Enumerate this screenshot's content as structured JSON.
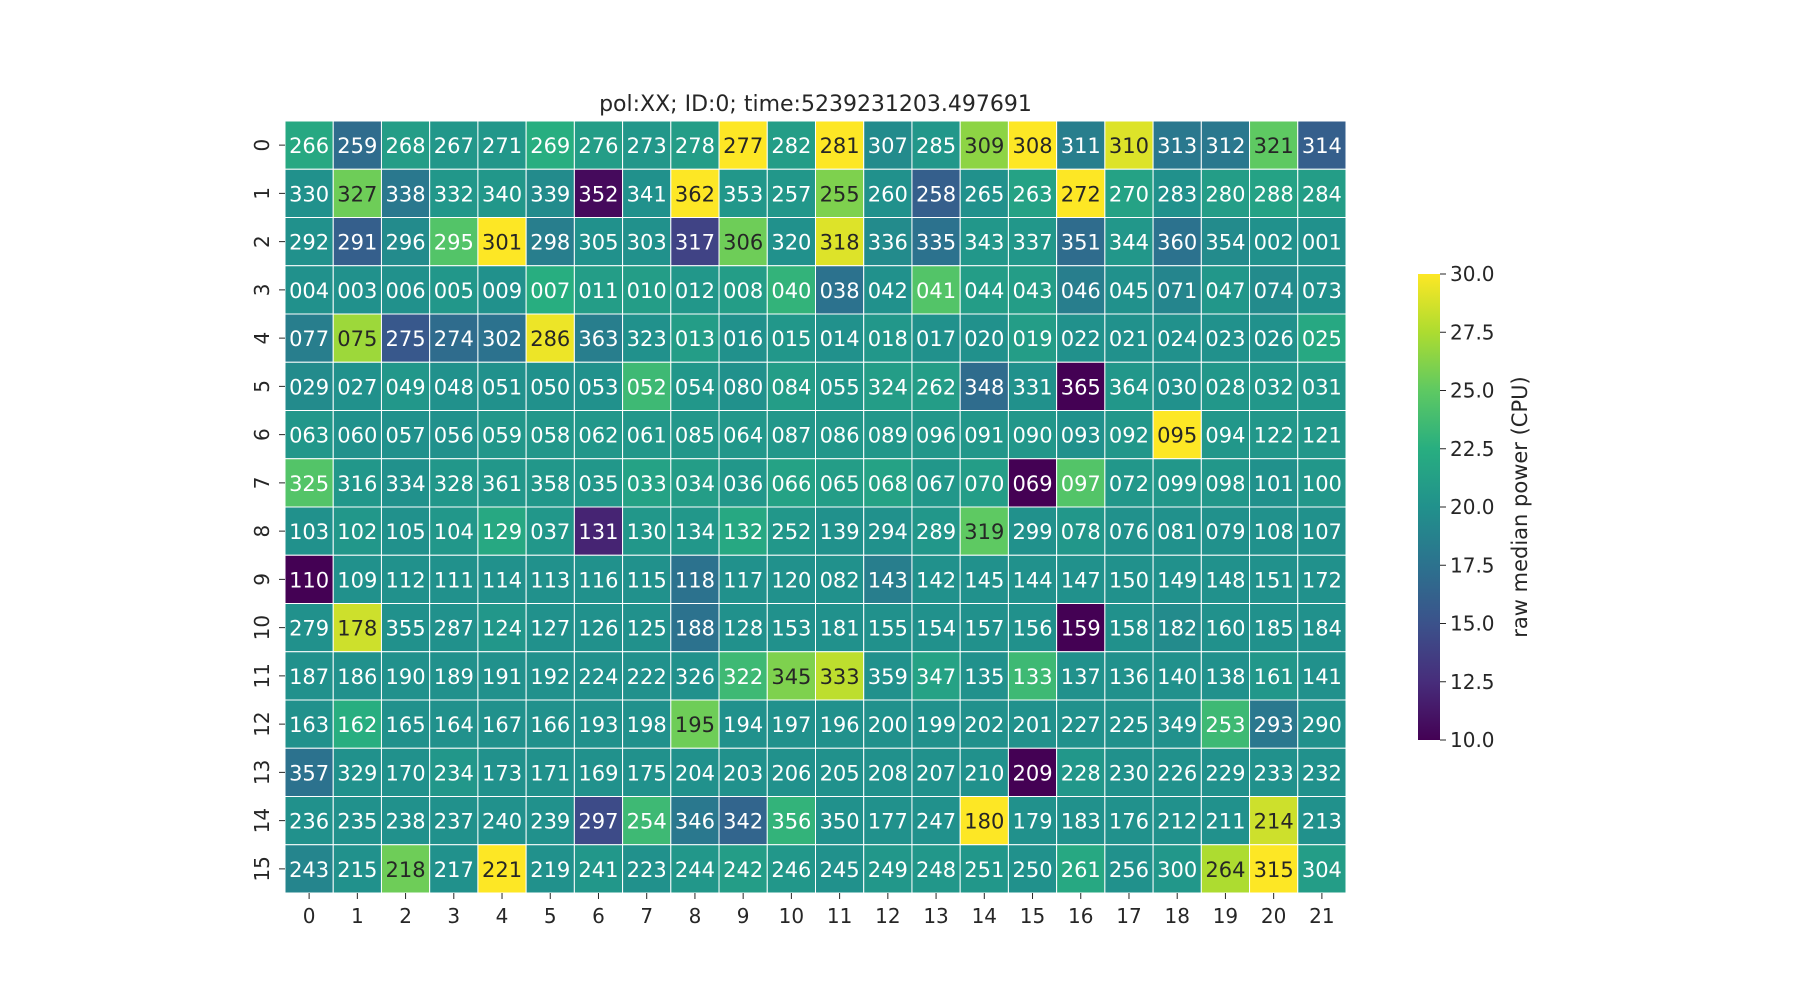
{
  "chart_data": {
    "type": "heatmap",
    "title": "pol:XX; ID:0; time:5239231203.497691",
    "x_tick_labels": [
      "0",
      "1",
      "2",
      "3",
      "4",
      "5",
      "6",
      "7",
      "8",
      "9",
      "10",
      "11",
      "12",
      "13",
      "14",
      "15",
      "16",
      "17",
      "18",
      "19",
      "20",
      "21"
    ],
    "y_tick_labels": [
      "0",
      "1",
      "2",
      "3",
      "4",
      "5",
      "6",
      "7",
      "8",
      "9",
      "10",
      "11",
      "12",
      "13",
      "14",
      "15"
    ],
    "annotations": [
      [
        "266",
        "259",
        "268",
        "267",
        "271",
        "269",
        "276",
        "273",
        "278",
        "277",
        "282",
        "281",
        "307",
        "285",
        "309",
        "308",
        "311",
        "310",
        "313",
        "312",
        "321",
        "314"
      ],
      [
        "330",
        "327",
        "338",
        "332",
        "340",
        "339",
        "352",
        "341",
        "362",
        "353",
        "257",
        "255",
        "260",
        "258",
        "265",
        "263",
        "272",
        "270",
        "283",
        "280",
        "288",
        "284"
      ],
      [
        "292",
        "291",
        "296",
        "295",
        "301",
        "298",
        "305",
        "303",
        "317",
        "306",
        "320",
        "318",
        "336",
        "335",
        "343",
        "337",
        "351",
        "344",
        "360",
        "354",
        "002",
        "001"
      ],
      [
        "004",
        "003",
        "006",
        "005",
        "009",
        "007",
        "011",
        "010",
        "012",
        "008",
        "040",
        "038",
        "042",
        "041",
        "044",
        "043",
        "046",
        "045",
        "071",
        "047",
        "074",
        "073"
      ],
      [
        "077",
        "075",
        "275",
        "274",
        "302",
        "286",
        "363",
        "323",
        "013",
        "016",
        "015",
        "014",
        "018",
        "017",
        "020",
        "019",
        "022",
        "021",
        "024",
        "023",
        "026",
        "025"
      ],
      [
        "029",
        "027",
        "049",
        "048",
        "051",
        "050",
        "053",
        "052",
        "054",
        "080",
        "084",
        "055",
        "324",
        "262",
        "348",
        "331",
        "365",
        "364",
        "030",
        "028",
        "032",
        "031"
      ],
      [
        "063",
        "060",
        "057",
        "056",
        "059",
        "058",
        "062",
        "061",
        "085",
        "064",
        "087",
        "086",
        "089",
        "096",
        "091",
        "090",
        "093",
        "092",
        "095",
        "094",
        "122",
        "121"
      ],
      [
        "325",
        "316",
        "334",
        "328",
        "361",
        "358",
        "035",
        "033",
        "034",
        "036",
        "066",
        "065",
        "068",
        "067",
        "070",
        "069",
        "097",
        "072",
        "099",
        "098",
        "101",
        "100"
      ],
      [
        "103",
        "102",
        "105",
        "104",
        "129",
        "037",
        "131",
        "130",
        "134",
        "132",
        "252",
        "139",
        "294",
        "289",
        "319",
        "299",
        "078",
        "076",
        "081",
        "079",
        "108",
        "107"
      ],
      [
        "110",
        "109",
        "112",
        "111",
        "114",
        "113",
        "116",
        "115",
        "118",
        "117",
        "120",
        "082",
        "143",
        "142",
        "145",
        "144",
        "147",
        "150",
        "149",
        "148",
        "151",
        "172"
      ],
      [
        "279",
        "178",
        "355",
        "287",
        "124",
        "127",
        "126",
        "125",
        "188",
        "128",
        "153",
        "181",
        "155",
        "154",
        "157",
        "156",
        "159",
        "158",
        "182",
        "160",
        "185",
        "184"
      ],
      [
        "187",
        "186",
        "190",
        "189",
        "191",
        "192",
        "224",
        "222",
        "326",
        "322",
        "345",
        "333",
        "359",
        "347",
        "135",
        "133",
        "137",
        "136",
        "140",
        "138",
        "161",
        "141"
      ],
      [
        "163",
        "162",
        "165",
        "164",
        "167",
        "166",
        "193",
        "198",
        "195",
        "194",
        "197",
        "196",
        "200",
        "199",
        "202",
        "201",
        "227",
        "225",
        "349",
        "253",
        "293",
        "290"
      ],
      [
        "357",
        "329",
        "170",
        "234",
        "173",
        "171",
        "169",
        "175",
        "204",
        "203",
        "206",
        "205",
        "208",
        "207",
        "210",
        "209",
        "228",
        "230",
        "226",
        "229",
        "233",
        "232"
      ],
      [
        "236",
        "235",
        "238",
        "237",
        "240",
        "239",
        "297",
        "254",
        "346",
        "342",
        "356",
        "350",
        "177",
        "247",
        "180",
        "179",
        "183",
        "176",
        "212",
        "211",
        "214",
        "213"
      ],
      [
        "243",
        "215",
        "218",
        "217",
        "221",
        "219",
        "241",
        "223",
        "244",
        "242",
        "246",
        "245",
        "249",
        "248",
        "251",
        "250",
        "261",
        "256",
        "300",
        "264",
        "315",
        "304"
      ]
    ],
    "values": [
      [
        22.0,
        17.0,
        21.0,
        20.5,
        20.5,
        22.5,
        21.0,
        20.5,
        21.0,
        30.0,
        21.0,
        30.0,
        19.5,
        20.5,
        26.5,
        30.0,
        18.5,
        29.0,
        18.0,
        18.0,
        25.0,
        16.0
      ],
      [
        20.0,
        25.5,
        18.0,
        20.5,
        20.5,
        19.5,
        10.5,
        20.0,
        30.0,
        20.5,
        20.5,
        26.0,
        20.0,
        16.0,
        20.0,
        21.5,
        30.0,
        21.5,
        20.0,
        21.0,
        21.5,
        21.0
      ],
      [
        20.0,
        16.0,
        19.5,
        24.5,
        30.0,
        18.5,
        20.0,
        20.0,
        14.0,
        25.5,
        20.0,
        29.0,
        19.5,
        17.5,
        20.5,
        20.5,
        17.0,
        20.5,
        17.5,
        19.5,
        20.0,
        20.0
      ],
      [
        20.0,
        20.0,
        20.0,
        20.5,
        20.0,
        22.5,
        21.0,
        21.0,
        20.5,
        21.0,
        23.0,
        17.5,
        20.0,
        24.5,
        21.0,
        21.0,
        18.5,
        20.0,
        19.0,
        20.5,
        19.5,
        20.0
      ],
      [
        18.5,
        27.0,
        15.5,
        17.0,
        17.5,
        29.5,
        18.5,
        20.0,
        21.0,
        20.0,
        20.5,
        20.0,
        20.5,
        20.0,
        20.0,
        21.0,
        20.0,
        20.0,
        20.0,
        20.0,
        20.0,
        22.0
      ],
      [
        19.5,
        20.0,
        20.5,
        20.0,
        20.0,
        20.0,
        20.0,
        23.5,
        20.5,
        20.0,
        21.0,
        20.5,
        21.0,
        21.0,
        17.0,
        20.0,
        10.0,
        20.5,
        20.0,
        20.5,
        20.5,
        20.5
      ],
      [
        20.5,
        20.0,
        20.0,
        20.0,
        20.5,
        20.5,
        20.5,
        20.5,
        20.5,
        20.5,
        20.5,
        20.5,
        20.5,
        20.5,
        20.5,
        20.5,
        20.0,
        20.5,
        30.0,
        20.5,
        20.5,
        20.5
      ],
      [
        24.5,
        20.5,
        20.0,
        20.5,
        20.5,
        20.5,
        20.5,
        21.5,
        21.0,
        20.5,
        21.5,
        21.0,
        21.5,
        20.5,
        21.0,
        10.0,
        24.5,
        20.5,
        20.5,
        20.5,
        20.0,
        20.5
      ],
      [
        20.0,
        20.5,
        20.0,
        20.5,
        22.0,
        20.5,
        12.0,
        20.5,
        20.5,
        22.0,
        20.5,
        20.0,
        20.0,
        20.5,
        25.0,
        20.0,
        20.5,
        20.0,
        20.0,
        20.0,
        20.0,
        20.0
      ],
      [
        10.0,
        20.0,
        20.0,
        20.0,
        20.0,
        20.0,
        20.0,
        20.0,
        17.5,
        20.0,
        20.0,
        20.0,
        18.5,
        20.0,
        20.0,
        20.0,
        20.0,
        20.0,
        20.0,
        20.0,
        20.0,
        20.0
      ],
      [
        20.0,
        28.5,
        20.0,
        20.0,
        20.5,
        20.0,
        20.0,
        20.0,
        17.5,
        20.0,
        20.0,
        20.0,
        20.0,
        20.0,
        20.0,
        20.0,
        10.0,
        20.0,
        19.5,
        20.0,
        20.0,
        20.0
      ],
      [
        20.0,
        20.0,
        20.0,
        20.0,
        20.0,
        20.0,
        20.0,
        20.0,
        20.0,
        23.5,
        26.0,
        28.0,
        20.0,
        21.5,
        20.0,
        23.5,
        20.0,
        20.0,
        20.0,
        20.0,
        20.5,
        20.0
      ],
      [
        20.0,
        22.5,
        20.0,
        20.0,
        20.0,
        20.0,
        20.0,
        20.0,
        25.5,
        20.0,
        20.0,
        20.0,
        20.0,
        20.0,
        20.0,
        20.0,
        20.0,
        20.0,
        20.0,
        23.5,
        18.0,
        20.0
      ],
      [
        17.5,
        20.0,
        20.0,
        20.5,
        20.0,
        20.0,
        20.0,
        20.0,
        20.0,
        20.0,
        20.0,
        20.0,
        20.0,
        20.0,
        20.0,
        10.0,
        20.5,
        20.0,
        20.0,
        20.0,
        20.0,
        20.0
      ],
      [
        20.0,
        20.0,
        20.0,
        20.0,
        20.0,
        20.0,
        14.5,
        23.5,
        18.0,
        16.5,
        23.0,
        20.0,
        20.0,
        20.0,
        30.0,
        20.0,
        20.0,
        20.0,
        20.0,
        20.0,
        28.5,
        20.0
      ],
      [
        19.0,
        20.0,
        25.5,
        20.0,
        30.0,
        20.0,
        20.5,
        20.0,
        20.5,
        21.0,
        20.5,
        20.0,
        20.5,
        20.5,
        20.5,
        20.0,
        22.0,
        20.0,
        20.5,
        27.5,
        30.0,
        21.0
      ]
    ],
    "colorbar": {
      "label": "raw median power (CPU)",
      "min": 10.0,
      "max": 30.0,
      "ticks": [
        "10.0",
        "12.5",
        "15.0",
        "17.5",
        "20.0",
        "22.5",
        "25.0",
        "27.5",
        "30.0"
      ],
      "colormap": "viridis"
    },
    "grid": true
  }
}
